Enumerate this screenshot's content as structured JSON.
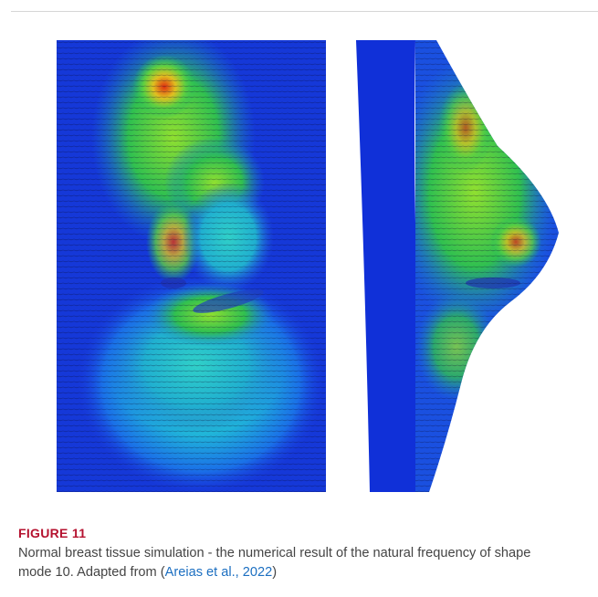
{
  "figure": {
    "label": "FIGURE 11",
    "caption": "Normal breast tissue simulation - the numerical result of the natural frequency of shape mode 10. Adapted from (",
    "citation": "Areias et al., 2022",
    "caption_end": ")"
  }
}
